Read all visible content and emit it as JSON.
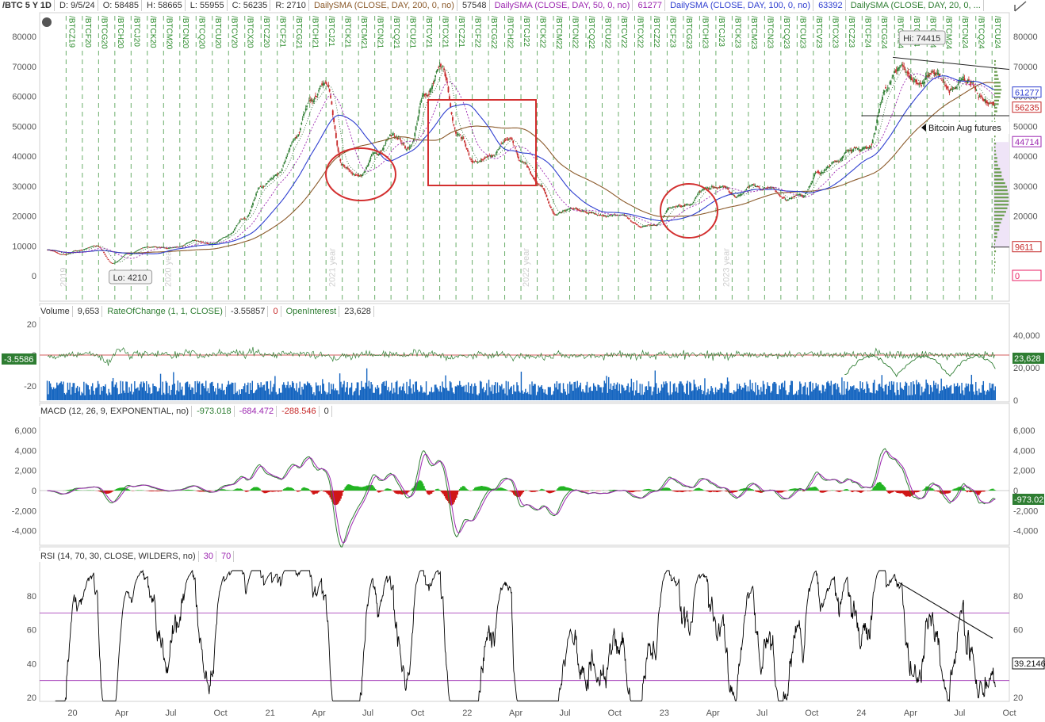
{
  "header": {
    "symbol": "/BTC 5 Y 1D",
    "date": "D: 9/5/24",
    "open": "O: 58485",
    "high": "H: 58665",
    "low": "L: 55955",
    "close": "C: 56235",
    "range": "R: 2710",
    "sma200_label": "DailySMA (CLOSE, DAY, 200, 0, no)",
    "sma200_value": "57548",
    "sma50_label": "DailySMA (CLOSE, DAY, 50, 0, no)",
    "sma50_value": "61277",
    "sma100_label": "DailySMA (CLOSE, DAY, 100, 0, no)",
    "sma100_value": "63392",
    "sma20_label": "DailySMA (CLOSE, DAY, 20, 0, ..."
  },
  "colors": {
    "candle_up": "#2e7d32",
    "candle_down": "#c62828",
    "sma200": "#8b5a2b",
    "sma100": "#2f3fd0",
    "sma50": "#9c27b0",
    "sma20": "#1b5e20",
    "annotation": "#d32f2f",
    "contract_line": "#2a8a2a",
    "volume": "#1565c0",
    "roc": "#2e7d32",
    "macd": "#2e7d32",
    "signal": "#9c27b0",
    "rsi": "#000000",
    "rsi_bound": "#9c27b0"
  },
  "price_panel": {
    "hi_label": "Hi: 74415",
    "lo_label": "Lo: 4210",
    "futures_note": "Bitcoin Aug futures",
    "y_ticks": [
      "80000",
      "70000",
      "60000",
      "50000",
      "40000",
      "30000",
      "20000",
      "10000",
      "0"
    ],
    "right_tags": [
      {
        "text": "61277",
        "value": 61277,
        "color": "#2f3fd0"
      },
      {
        "text": "56235",
        "value": 56235,
        "color": "#c62828"
      },
      {
        "text": "44714",
        "value": 44714,
        "color": "#9c27b0"
      },
      {
        "text": "9611",
        "value": 9611,
        "color": "#c62828"
      },
      {
        "text": "0",
        "value": 0,
        "color": "#e91e63"
      }
    ],
    "year_labels": [
      "2019",
      "2020 year",
      "2021 year",
      "2022 year",
      "2023 year"
    ],
    "contracts": [
      "/BTCZ19",
      "/BTCF20",
      "/BTCG20",
      "/BTCH20",
      "/BTCJ20",
      "/BTCK20",
      "/BTCM20",
      "/BTCN20",
      "/BTCQ20",
      "/BTCU20",
      "/BTCV20",
      "/BTCX20",
      "/BTCZ20",
      "/BTCF21",
      "/BTCG21",
      "/BTCH21",
      "/BTCJ21",
      "/BTCK21",
      "/BTCM21",
      "/BTCN21",
      "/BTCQ21",
      "/BTCU21",
      "/BTCV21",
      "/BTCX21",
      "/BTCZ21",
      "/BTCF22",
      "/BTCG22",
      "/BTCH22",
      "/BTCJ22",
      "/BTCK22",
      "/BTCM22",
      "/BTCN22",
      "/BTCQ22",
      "/BTCU22",
      "/BTCV22",
      "/BTCX22",
      "/BTCZ22",
      "/BTCF23",
      "/BTCG23",
      "/BTCH23",
      "/BTCJ23",
      "/BTCK23",
      "/BTCM23",
      "/BTCN23",
      "/BTCQ23",
      "/BTCU23",
      "/BTCV23",
      "/BTCX23",
      "/BTCZ23",
      "/BTCF24",
      "/BTCG24",
      "/BTCH24",
      "/BTCJ24",
      "/BTCK24",
      "/BTCM24",
      "/BTCN24",
      "/BTCQ24",
      "/BTCU24"
    ]
  },
  "volume_panel": {
    "title": "Volume",
    "volume_value": "9,653",
    "roc_label": "RateOfChange (1, 1, CLOSE)",
    "roc_value": "-3.55857",
    "roc_zero": "0",
    "oi_label": "OpenInterest",
    "oi_value": "23,628",
    "left_ticks": [
      "20",
      "0",
      "-20"
    ],
    "right_ticks": [
      "40,000",
      "20,000",
      "0"
    ],
    "left_tag": "-3.5586",
    "right_tag": "23,628"
  },
  "macd_panel": {
    "label": "MACD (12, 26, 9, EXPONENTIAL, no)",
    "macd_value": "-973.018",
    "signal_value": "-684.472",
    "hist_value": "-288.546",
    "zero": "0",
    "ticks": [
      "6,000",
      "4,000",
      "2,000",
      "0",
      "-2,000",
      "-4,000"
    ],
    "right_tag": "-973.02"
  },
  "rsi_panel": {
    "label": "RSI (14, 70, 30, CLOSE, WILDERS, no)",
    "oversold": "30",
    "overbought": "70",
    "ticks": [
      "80",
      "60",
      "40",
      "20"
    ],
    "right_tag": "39.2146"
  },
  "x_axis": {
    "labels": [
      "20",
      "Apr",
      "Jul",
      "Oct",
      "21",
      "Apr",
      "Jul",
      "Oct",
      "22",
      "Apr",
      "Jul",
      "Oct",
      "23",
      "Apr",
      "Jul",
      "Oct",
      "24",
      "Apr",
      "Jul",
      "Oct"
    ]
  },
  "chart_data": {
    "type": "line",
    "title": "/BTC 5 Y 1D",
    "x_range": [
      "2019-11",
      "2024-10"
    ],
    "ylim": [
      0,
      84000
    ],
    "series": [
      {
        "name": "DailySMA (CLOSE, DAY, 200, 0, no)",
        "last": 57548
      },
      {
        "name": "DailySMA (CLOSE, DAY, 50, 0, no)",
        "last": 61277
      },
      {
        "name": "DailySMA (CLOSE, DAY, 100, 0, no)",
        "last": 63392
      }
    ],
    "price_path": [
      [
        "2019-11",
        8700
      ],
      [
        "2019-12",
        7200
      ],
      [
        "2020-01",
        8600
      ],
      [
        "2020-02",
        10200
      ],
      [
        "2020-03",
        4210
      ],
      [
        "2020-04",
        7500
      ],
      [
        "2020-05",
        9500
      ],
      [
        "2020-06",
        9300
      ],
      [
        "2020-07",
        9800
      ],
      [
        "2020-08",
        11800
      ],
      [
        "2020-09",
        10700
      ],
      [
        "2020-10",
        13500
      ],
      [
        "2020-11",
        19000
      ],
      [
        "2020-12",
        29000
      ],
      [
        "2021-01",
        34000
      ],
      [
        "2021-02",
        46000
      ],
      [
        "2021-03",
        58000
      ],
      [
        "2021-04",
        64000
      ],
      [
        "2021-05",
        37000
      ],
      [
        "2021-06",
        33000
      ],
      [
        "2021-07",
        40000
      ],
      [
        "2021-08",
        47000
      ],
      [
        "2021-09",
        43000
      ],
      [
        "2021-10",
        61000
      ],
      [
        "2021-11",
        69000
      ],
      [
        "2021-12",
        47000
      ],
      [
        "2022-01",
        38000
      ],
      [
        "2022-02",
        40000
      ],
      [
        "2022-03",
        46000
      ],
      [
        "2022-04",
        38000
      ],
      [
        "2022-05",
        30000
      ],
      [
        "2022-06",
        20000
      ],
      [
        "2022-07",
        23000
      ],
      [
        "2022-08",
        21000
      ],
      [
        "2022-09",
        19500
      ],
      [
        "2022-10",
        20500
      ],
      [
        "2022-11",
        16500
      ],
      [
        "2022-12",
        16800
      ],
      [
        "2023-01",
        23000
      ],
      [
        "2023-02",
        23500
      ],
      [
        "2023-03",
        28500
      ],
      [
        "2023-04",
        29500
      ],
      [
        "2023-05",
        27000
      ],
      [
        "2023-06",
        30500
      ],
      [
        "2023-07",
        29300
      ],
      [
        "2023-08",
        26000
      ],
      [
        "2023-09",
        27000
      ],
      [
        "2023-10",
        34500
      ],
      [
        "2023-11",
        38000
      ],
      [
        "2023-12",
        42500
      ],
      [
        "2024-01",
        43000
      ],
      [
        "2024-02",
        62000
      ],
      [
        "2024-03",
        71000
      ],
      [
        "2024-04",
        63500
      ],
      [
        "2024-05",
        67500
      ],
      [
        "2024-06",
        62500
      ],
      [
        "2024-07",
        66000
      ],
      [
        "2024-08",
        59000
      ],
      [
        "2024-09",
        56235
      ]
    ],
    "hi": 74415,
    "lo": 4210,
    "macd_last": -973.018,
    "signal_last": -684.472,
    "hist_last": -288.546,
    "rsi_last": 39.2146,
    "roc_last": -3.55857,
    "open_interest_last": 23628,
    "volume_last": 9653,
    "grid": false
  }
}
